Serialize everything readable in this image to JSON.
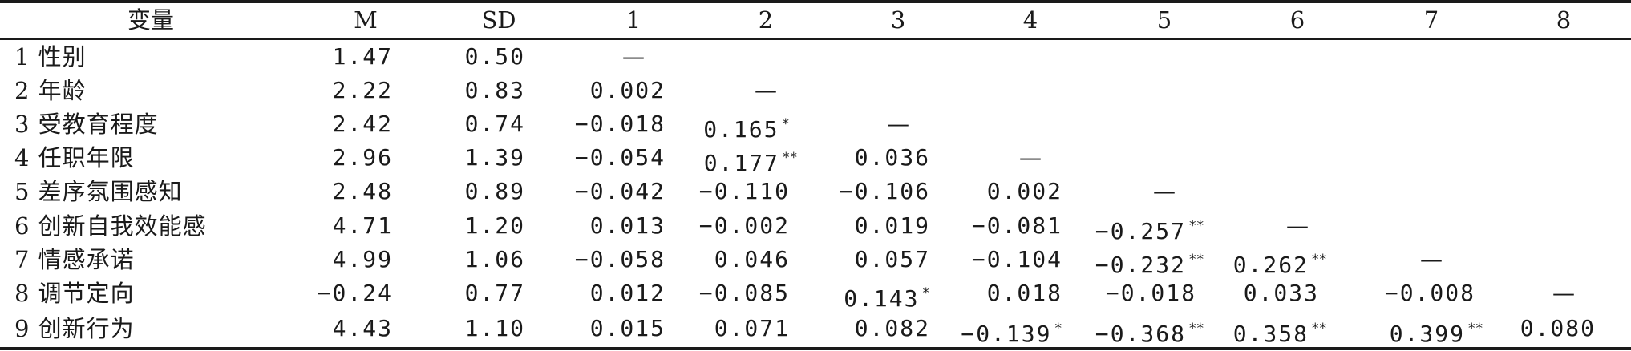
{
  "table": {
    "headers": [
      "变量",
      "M",
      "SD",
      "1",
      "2",
      "3",
      "4",
      "5",
      "6",
      "7",
      "8"
    ],
    "dash": "—",
    "rows": [
      {
        "label": "1 性别",
        "m": "1.47",
        "sd": "0.50",
        "cells": [
          {
            "v": "—",
            "s": ""
          }
        ]
      },
      {
        "label": "2 年龄",
        "m": "2.22",
        "sd": "0.83",
        "cells": [
          {
            "v": "0.002",
            "s": ""
          },
          {
            "v": "—",
            "s": ""
          }
        ]
      },
      {
        "label": "3 受教育程度",
        "m": "2.42",
        "sd": "0.74",
        "cells": [
          {
            "v": "−0.018",
            "s": ""
          },
          {
            "v": "0.165",
            "s": "*"
          },
          {
            "v": "—",
            "s": ""
          }
        ]
      },
      {
        "label": "4 任职年限",
        "m": "2.96",
        "sd": "1.39",
        "cells": [
          {
            "v": "−0.054",
            "s": ""
          },
          {
            "v": "0.177",
            "s": "**"
          },
          {
            "v": "0.036",
            "s": ""
          },
          {
            "v": "—",
            "s": ""
          }
        ]
      },
      {
        "label": "5 差序氛围感知",
        "m": "2.48",
        "sd": "0.89",
        "cells": [
          {
            "v": "−0.042",
            "s": ""
          },
          {
            "v": "−0.110",
            "s": ""
          },
          {
            "v": "−0.106",
            "s": ""
          },
          {
            "v": "0.002",
            "s": ""
          },
          {
            "v": "—",
            "s": ""
          }
        ]
      },
      {
        "label": "6 创新自我效能感",
        "m": "4.71",
        "sd": "1.20",
        "cells": [
          {
            "v": "0.013",
            "s": ""
          },
          {
            "v": "−0.002",
            "s": ""
          },
          {
            "v": "0.019",
            "s": ""
          },
          {
            "v": "−0.081",
            "s": ""
          },
          {
            "v": "−0.257",
            "s": "**"
          },
          {
            "v": "—",
            "s": ""
          }
        ]
      },
      {
        "label": "7 情感承诺",
        "m": "4.99",
        "sd": "1.06",
        "cells": [
          {
            "v": "−0.058",
            "s": ""
          },
          {
            "v": "0.046",
            "s": ""
          },
          {
            "v": "0.057",
            "s": ""
          },
          {
            "v": "−0.104",
            "s": ""
          },
          {
            "v": "−0.232",
            "s": "**"
          },
          {
            "v": "0.262",
            "s": "**"
          },
          {
            "v": "—",
            "s": ""
          }
        ]
      },
      {
        "label": "8 调节定向",
        "m": "−0.24",
        "sd": "0.77",
        "cells": [
          {
            "v": "0.012",
            "s": ""
          },
          {
            "v": "−0.085",
            "s": ""
          },
          {
            "v": "0.143",
            "s": "*"
          },
          {
            "v": "0.018",
            "s": ""
          },
          {
            "v": "−0.018",
            "s": ""
          },
          {
            "v": "0.033",
            "s": ""
          },
          {
            "v": "−0.008",
            "s": ""
          },
          {
            "v": "—",
            "s": ""
          }
        ]
      },
      {
        "label": "9 创新行为",
        "m": "4.43",
        "sd": "1.10",
        "cells": [
          {
            "v": "0.015",
            "s": ""
          },
          {
            "v": "0.071",
            "s": ""
          },
          {
            "v": "0.082",
            "s": ""
          },
          {
            "v": "−0.139",
            "s": "*"
          },
          {
            "v": "−0.368",
            "s": "**"
          },
          {
            "v": "0.358",
            "s": "**"
          },
          {
            "v": "0.399",
            "s": "**"
          },
          {
            "v": "0.080",
            "s": ""
          }
        ]
      }
    ]
  }
}
